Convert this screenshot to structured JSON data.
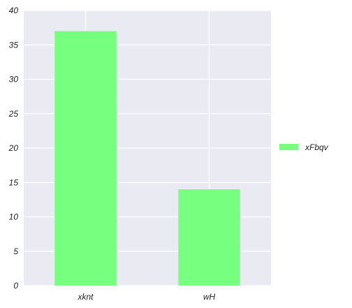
{
  "chart_data": {
    "type": "bar",
    "categories": [
      "xknt",
      "wH"
    ],
    "series": [
      {
        "name": "xFbqv",
        "values": [
          37,
          14
        ],
        "color": "#77ff80"
      }
    ],
    "title": "",
    "xlabel": "",
    "ylabel": "",
    "ylim": [
      0,
      40
    ],
    "yticks": [
      0,
      5,
      10,
      15,
      20,
      25,
      30,
      35,
      40
    ],
    "grid": true,
    "legend_position": "right",
    "background_color": "#eaeaf2",
    "grid_color": "#ffffff"
  }
}
